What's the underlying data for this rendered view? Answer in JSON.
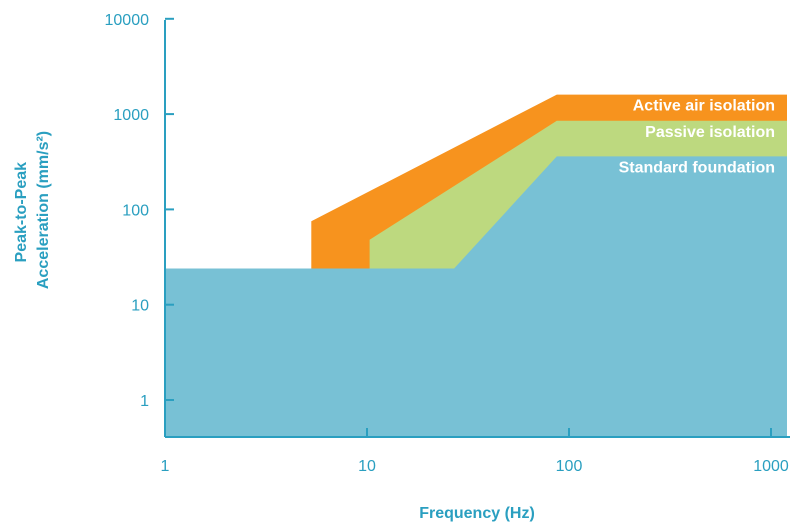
{
  "chart_data": {
    "type": "area",
    "title": "",
    "xlabel": "Frequency (Hz)",
    "ylabel_lines": [
      "Peak-to-Peak",
      "Acceleration (mm/s²)"
    ],
    "x_scale": "log",
    "y_scale": "log",
    "xlim": [
      1,
      1200
    ],
    "ylim": [
      0.4,
      10000
    ],
    "x_ticks": [
      {
        "value": 1,
        "label": "1"
      },
      {
        "value": 10,
        "label": "10"
      },
      {
        "value": 100,
        "label": "100"
      },
      {
        "value": 1000,
        "label": "1000"
      }
    ],
    "y_ticks": [
      {
        "value": 1,
        "label": "1"
      },
      {
        "value": 10,
        "label": "10"
      },
      {
        "value": 100,
        "label": "100"
      },
      {
        "value": 1000,
        "label": "1000"
      },
      {
        "value": 10000,
        "label": "10000"
      }
    ],
    "grid": false,
    "series": [
      {
        "name": "Active air isolation",
        "color": "#f7931e",
        "points": [
          [
            5.3,
            24
          ],
          [
            5.3,
            75
          ],
          [
            87,
            1600
          ],
          [
            1200,
            1600
          ]
        ]
      },
      {
        "name": "Passive isolation",
        "color": "#bdd97f",
        "points": [
          [
            10.3,
            24
          ],
          [
            10.3,
            48
          ],
          [
            87,
            850
          ],
          [
            1200,
            850
          ]
        ]
      },
      {
        "name": "Standard foundation",
        "color": "#78c1d5",
        "points": [
          [
            1,
            24
          ],
          [
            27,
            24
          ],
          [
            87,
            360
          ],
          [
            1200,
            360
          ]
        ]
      }
    ],
    "axis_color": "#2a9fc0"
  }
}
